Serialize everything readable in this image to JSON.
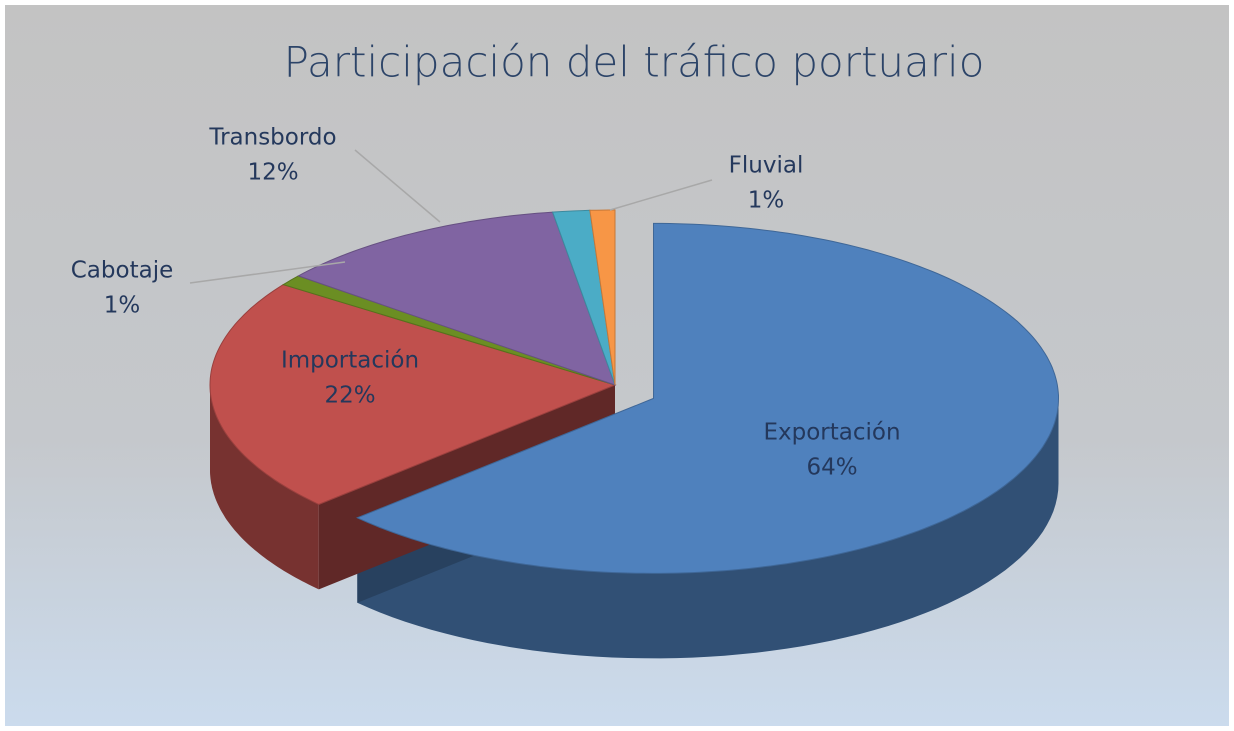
{
  "chart_data": {
    "type": "pie3d",
    "title": "Participación del tráfico portuario",
    "categories": [
      "Exportación",
      "Importación",
      "Cabotaje",
      "Transbordo",
      null,
      "Fluvial"
    ],
    "values": [
      64,
      22,
      1,
      12,
      1.5,
      1
    ],
    "value_labels": [
      "64%",
      "22%",
      "1%",
      "12%",
      null,
      "1%"
    ],
    "colors": [
      "#4f81bd",
      "#c0504d",
      "#6b8e23",
      "#8064a2",
      "#4bacc6",
      "#f79646"
    ]
  }
}
